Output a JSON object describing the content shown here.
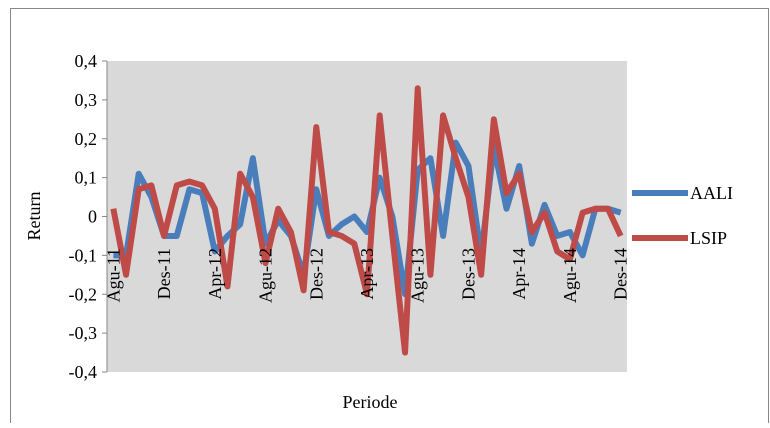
{
  "chart_data": {
    "type": "line",
    "x_label": "Periode",
    "y_label": "Return",
    "categories": [
      "Agu-11",
      null,
      null,
      null,
      "Des-11",
      null,
      null,
      null,
      "Apr-12",
      null,
      null,
      null,
      "Agu-12",
      null,
      null,
      null,
      "Des-12",
      null,
      null,
      null,
      "Apr-13",
      null,
      null,
      null,
      "Agu-13",
      null,
      null,
      null,
      "Des-13",
      null,
      null,
      null,
      "Apr-14",
      null,
      null,
      null,
      "Agu-14",
      null,
      null,
      null,
      "Des-14"
    ],
    "series": [
      {
        "name": "AALI",
        "color": "#4a7ebb",
        "values": [
          -0.1,
          -0.1,
          0.11,
          0.05,
          -0.05,
          -0.05,
          0.07,
          0.06,
          -0.09,
          -0.05,
          -0.02,
          0.15,
          -0.07,
          -0.01,
          -0.05,
          -0.15,
          0.07,
          -0.05,
          -0.02,
          0.0,
          -0.04,
          0.1,
          0.0,
          -0.2,
          0.12,
          0.15,
          -0.05,
          0.19,
          0.13,
          -0.1,
          0.18,
          0.02,
          0.13,
          -0.07,
          0.03,
          -0.05,
          -0.04,
          -0.1,
          0.02,
          0.02,
          0.01
        ]
      },
      {
        "name": "LSIP",
        "color": "#be4b48",
        "values": [
          0.02,
          -0.15,
          0.07,
          0.08,
          -0.05,
          0.08,
          0.09,
          0.08,
          0.02,
          -0.18,
          0.11,
          0.05,
          -0.12,
          0.02,
          -0.04,
          -0.19,
          0.23,
          -0.04,
          -0.05,
          -0.07,
          -0.2,
          0.26,
          -0.05,
          -0.35,
          0.33,
          -0.15,
          0.26,
          0.15,
          0.05,
          -0.15,
          0.25,
          0.06,
          0.11,
          -0.04,
          0.01,
          -0.09,
          -0.11,
          0.01,
          0.02,
          0.02,
          -0.05
        ]
      }
    ],
    "ylim": [
      -0.4,
      0.4
    ],
    "yticks": [
      {
        "value": -0.4,
        "label": "-0,4"
      },
      {
        "value": -0.3,
        "label": "-0,3"
      },
      {
        "value": -0.2,
        "label": "-0,2"
      },
      {
        "value": -0.1,
        "label": "-0,1"
      },
      0,
      {
        "value": 0.1,
        "label": "0,1"
      },
      {
        "value": 0.2,
        "label": "0,2"
      },
      {
        "value": 0.3,
        "label": "0,3"
      },
      {
        "value": 0.4,
        "label": "0,4"
      }
    ],
    "plot_background": "#d9d9d9",
    "legend": "right"
  }
}
